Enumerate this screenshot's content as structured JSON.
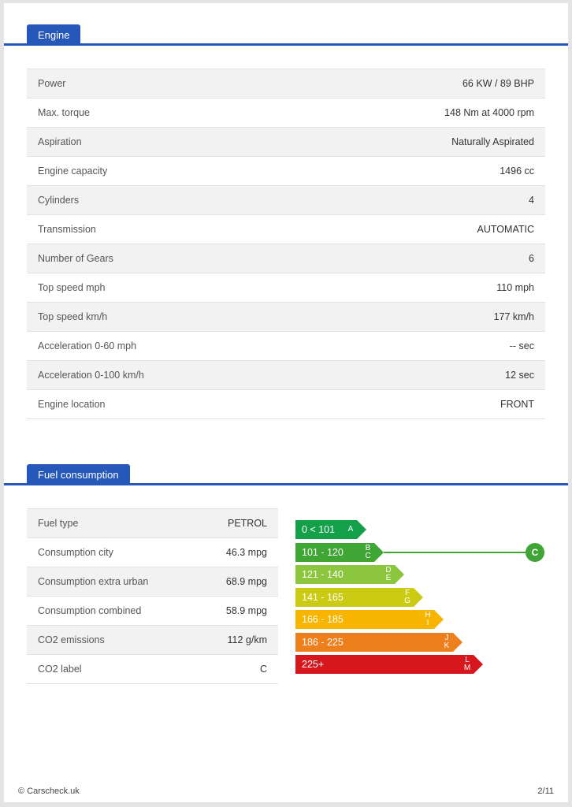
{
  "engine": {
    "tab_label": "Engine",
    "rows": [
      {
        "label": "Power",
        "value": "66 KW / 89 BHP"
      },
      {
        "label": "Max. torque",
        "value": "148 Nm at 4000 rpm"
      },
      {
        "label": "Aspiration",
        "value": "Naturally Aspirated"
      },
      {
        "label": "Engine capacity",
        "value": "1496 cc"
      },
      {
        "label": "Cylinders",
        "value": "4"
      },
      {
        "label": "Transmission",
        "value": "AUTOMATIC"
      },
      {
        "label": "Number of Gears",
        "value": "6"
      },
      {
        "label": "Top speed mph",
        "value": "110 mph"
      },
      {
        "label": "Top speed km/h",
        "value": "177 km/h"
      },
      {
        "label": "Acceleration 0-60 mph",
        "value": "-- sec"
      },
      {
        "label": "Acceleration 0-100 km/h",
        "value": "12 sec"
      },
      {
        "label": "Engine location",
        "value": "FRONT"
      }
    ]
  },
  "fuel": {
    "tab_label": "Fuel consumption",
    "rows": [
      {
        "label": "Fuel type",
        "value": "PETROL"
      },
      {
        "label": "Consumption city",
        "value": "46.3 mpg"
      },
      {
        "label": "Consumption extra urban",
        "value": "68.9 mpg"
      },
      {
        "label": "Consumption combined",
        "value": "58.9 mpg"
      },
      {
        "label": "CO2 emissions",
        "value": "112 g/km"
      },
      {
        "label": "CO2 label",
        "value": "C"
      }
    ]
  },
  "co2_scale": {
    "bands": [
      {
        "range": "0 < 101",
        "letters": "A",
        "color": "#13a049"
      },
      {
        "range": "101 - 120",
        "letters": "B\nC",
        "color": "#3fa535"
      },
      {
        "range": "121 - 140",
        "letters": "D\nE",
        "color": "#8cc63f"
      },
      {
        "range": "141 - 165",
        "letters": "F\nG",
        "color": "#cbcb14"
      },
      {
        "range": "166 - 185",
        "letters": "H\nI",
        "color": "#f7b500"
      },
      {
        "range": "186 - 225",
        "letters": "J\nK",
        "color": "#ee7f1d"
      },
      {
        "range": "225+",
        "letters": "L\nM",
        "color": "#d7171e"
      }
    ],
    "current_label": "C",
    "current_band_index": 1,
    "indicator_color": "#3fa535"
  },
  "footer": {
    "copyright": "© Carscheck.uk",
    "page": "2/11"
  }
}
